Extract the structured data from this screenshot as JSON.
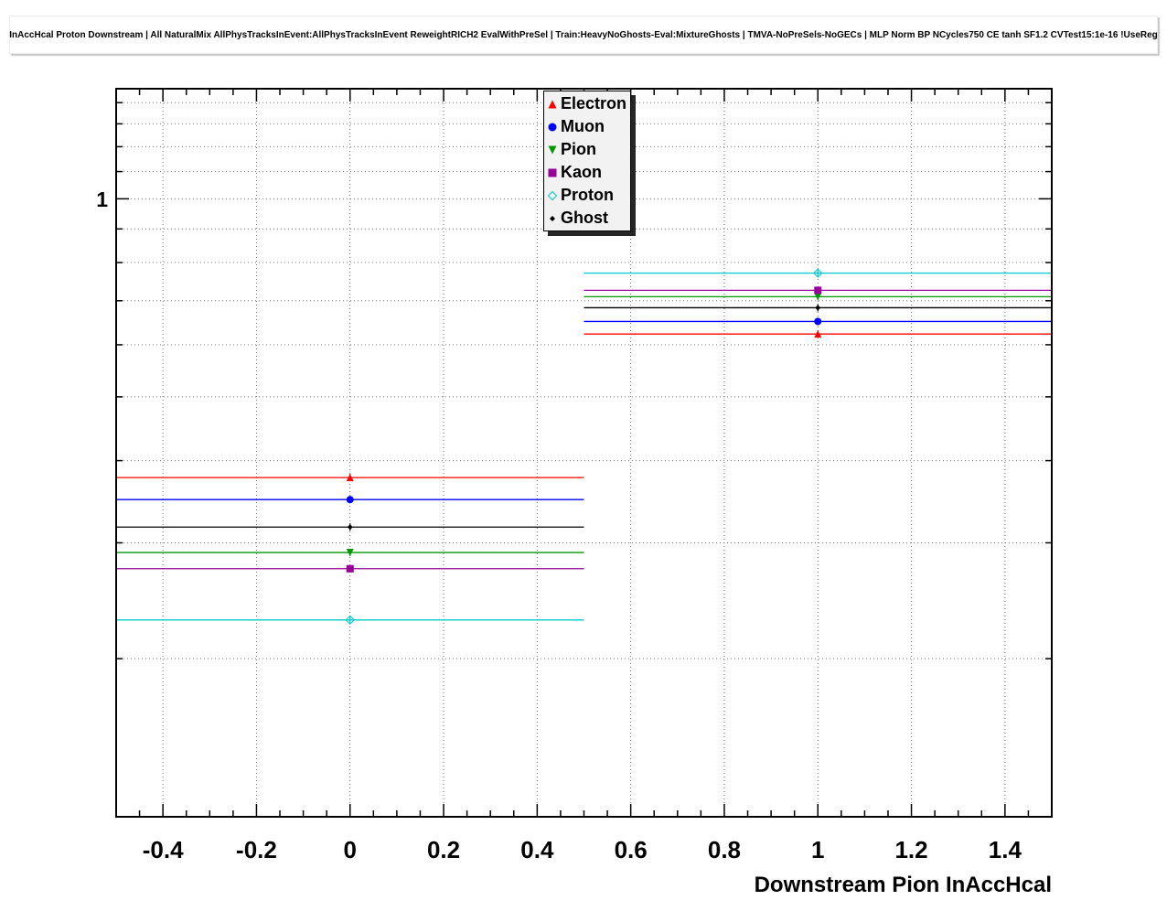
{
  "chart_data": {
    "type": "scatter",
    "title": "InAccHcal Proton Downstream | All NaturalMix AllPhysTracksInEvent:AllPhysTracksInEvent ReweightRICH2 EvalWithPreSel | Train:HeavyNoGhosts-Eval:MixtureGhosts | TMVA-NoPreSels-NoGECs | MLP Norm BP NCycles750 CE tanh SF1.2 CVTest15:1e-16 !UseReg",
    "xlabel": "Downstream Pion InAccHcal",
    "ylabel": "",
    "yscale": "log",
    "grid": true,
    "xlim": [
      -0.5,
      1.5
    ],
    "ylim": [
      0.115,
      1.47
    ],
    "x": [
      0,
      1
    ],
    "bin_halfwidth": 0.5,
    "x_ticks": [
      -0.4,
      -0.2,
      0,
      0.2,
      0.4,
      0.6,
      0.8,
      1,
      1.2,
      1.4
    ],
    "y_ticks": [
      {
        "value": 1,
        "label": "1"
      }
    ],
    "legend_position": "top-center",
    "series": [
      {
        "name": "Electron",
        "color": "#ff0000",
        "marker": "triangle-up",
        "values": [
          0.377,
          0.623
        ]
      },
      {
        "name": "Muon",
        "color": "#0000ff",
        "marker": "circle",
        "values": [
          0.349,
          0.651
        ]
      },
      {
        "name": "Pion",
        "color": "#009900",
        "marker": "triangle-down",
        "values": [
          0.29,
          0.71
        ]
      },
      {
        "name": "Kaon",
        "color": "#990099",
        "marker": "square",
        "values": [
          0.274,
          0.726
        ]
      },
      {
        "name": "Proton",
        "color": "#00cccc",
        "marker": "diamond-open",
        "values": [
          0.229,
          0.771
        ]
      },
      {
        "name": "Ghost",
        "color": "#000000",
        "marker": "diamond-small",
        "values": [
          0.317,
          0.683
        ]
      }
    ]
  }
}
